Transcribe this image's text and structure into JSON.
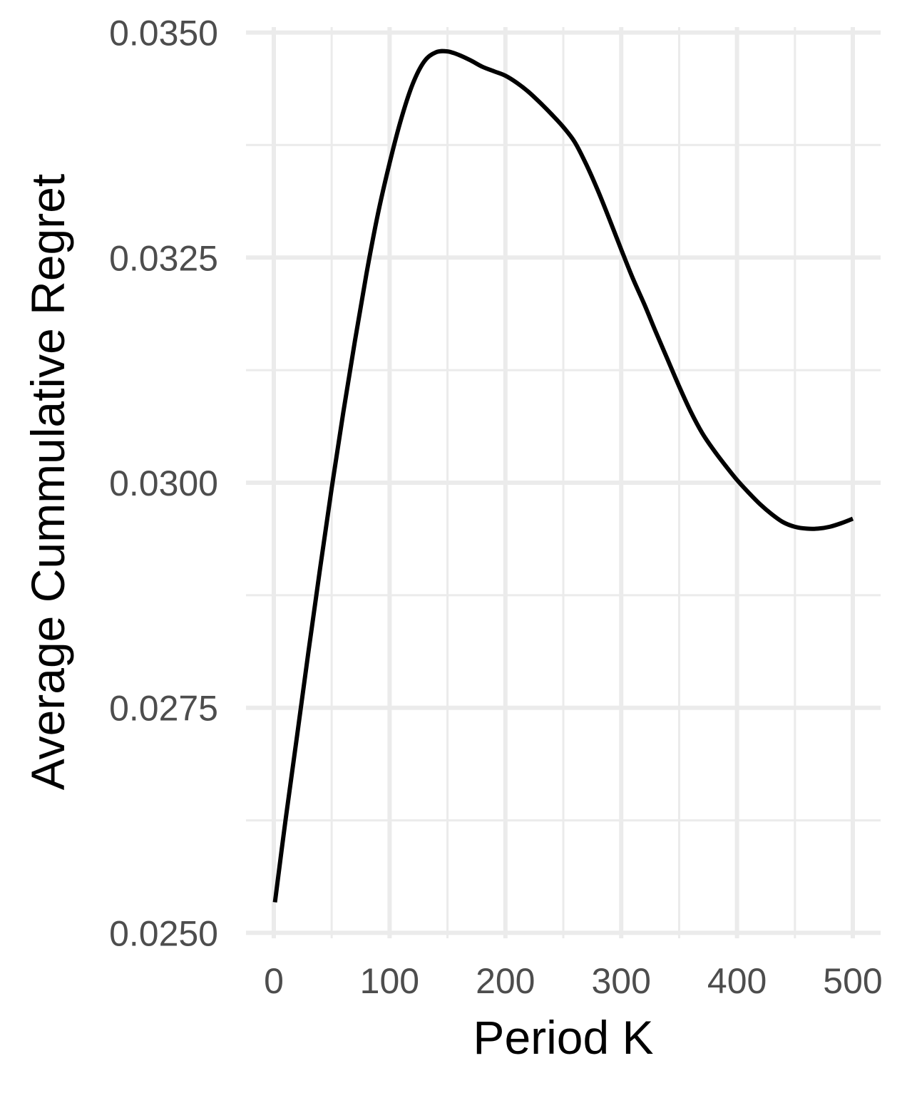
{
  "chart_data": {
    "type": "line",
    "title": "",
    "xlabel": "Period K",
    "ylabel": "Average Cummulative Regret",
    "xlim": [
      -24,
      524
    ],
    "ylim": [
      0.02494,
      0.03506
    ],
    "x_ticks": [
      0,
      100,
      200,
      300,
      400,
      500
    ],
    "x_tick_labels": [
      "0",
      "100",
      "200",
      "300",
      "400",
      "500"
    ],
    "y_ticks": [
      0.025,
      0.0275,
      0.03,
      0.0325,
      0.035
    ],
    "y_tick_labels": [
      "0.0250",
      "0.0275",
      "0.0300",
      "0.0325",
      "0.0350"
    ],
    "grid": true,
    "legend": "none",
    "colors": {
      "line": "#000000",
      "grid_major": "#ebebeb",
      "grid_minor": "#ebebeb",
      "tick_text": "#4d4d4d",
      "axis_title": "#000000"
    },
    "series": [
      {
        "x": [
          1,
          10,
          20,
          30,
          40,
          50,
          60,
          70,
          80,
          90,
          100,
          110,
          120,
          130,
          140,
          150,
          160,
          170,
          180,
          190,
          200,
          210,
          220,
          230,
          240,
          250,
          260,
          270,
          280,
          290,
          300,
          310,
          320,
          330,
          340,
          350,
          360,
          370,
          380,
          390,
          400,
          410,
          420,
          430,
          440,
          450,
          460,
          470,
          480,
          490,
          500
        ],
        "values": [
          0.02534,
          0.02624,
          0.02718,
          0.02813,
          0.02905,
          0.02994,
          0.03078,
          0.03157,
          0.03232,
          0.03299,
          0.03355,
          0.03404,
          0.03443,
          0.03468,
          0.03478,
          0.03479,
          0.03475,
          0.03469,
          0.03462,
          0.03457,
          0.03452,
          0.03444,
          0.03434,
          0.03422,
          0.03409,
          0.03395,
          0.03378,
          0.03353,
          0.03324,
          0.03292,
          0.03259,
          0.03227,
          0.03198,
          0.03167,
          0.03137,
          0.03107,
          0.03079,
          0.03055,
          0.03036,
          0.03019,
          0.03003,
          0.02989,
          0.02976,
          0.02965,
          0.02956,
          0.02951,
          0.02949,
          0.02949,
          0.02951,
          0.02955,
          0.0296
        ]
      }
    ]
  }
}
